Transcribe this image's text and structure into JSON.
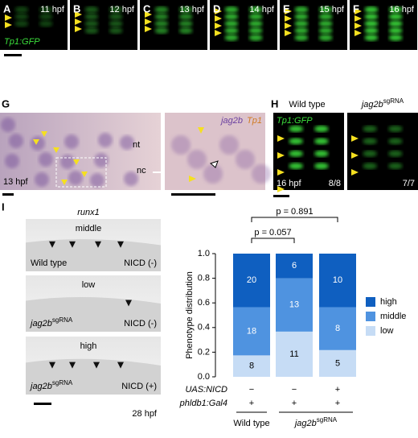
{
  "panels_row1": [
    {
      "letter": "A",
      "stage": "11 hpf"
    },
    {
      "letter": "B",
      "stage": "12 hpf"
    },
    {
      "letter": "C",
      "stage": "13 hpf"
    },
    {
      "letter": "D",
      "stage": "14 hpf"
    },
    {
      "letter": "E",
      "stage": "15 hpf"
    },
    {
      "letter": "F",
      "stage": "16 hpf"
    }
  ],
  "reporter_a": "Tp1:GFP",
  "panel_g": {
    "letter": "G",
    "stage": "13 hpf",
    "nt": "nt",
    "nc": "nc",
    "gene": "jag2b",
    "reporter": "Tp1"
  },
  "panel_h": {
    "letter": "H",
    "reporter": "Tp1:GFP",
    "wt": "Wild type",
    "mut": {
      "text": "jag2b",
      "sup": "sgRNA"
    },
    "stage": "16 hpf",
    "wt_ratio": "8/8",
    "mut_ratio": "7/7"
  },
  "panel_i": {
    "letter": "I",
    "gene": "runx1",
    "stage": "28 hpf",
    "images": [
      {
        "level": "middle",
        "genotype": {
          "text": "Wild type"
        },
        "nicd": "NICD (-)"
      },
      {
        "level": "low",
        "genotype": {
          "text": "jag2b",
          "sup": "sgRNA"
        },
        "nicd": "NICD (-)"
      },
      {
        "level": "high",
        "genotype": {
          "text": "jag2b",
          "sup": "sgRNA"
        },
        "nicd": "NICD (+)"
      }
    ]
  },
  "chart_data": {
    "type": "stacked_bar",
    "ylabel": "Phenotype distribution",
    "ylim": [
      0,
      1
    ],
    "yticks": [
      {
        "value": 0,
        "label": "0.0"
      },
      {
        "value": 0.2,
        "label": "0.2"
      },
      {
        "value": 0.4,
        "label": "0.4"
      },
      {
        "value": 0.6,
        "label": "0.6"
      },
      {
        "value": 0.8,
        "label": "0.8"
      },
      {
        "value": 1,
        "label": "1.0"
      }
    ],
    "series": [
      {
        "name": "low",
        "color": "#c6dcf5",
        "values": [
          0.174,
          0.367,
          0.217
        ],
        "counts": [
          "8",
          "11",
          "5"
        ]
      },
      {
        "name": "middle",
        "color": "#4f93e0",
        "values": [
          0.391,
          0.433,
          0.348
        ],
        "counts": [
          "18",
          "13",
          "8"
        ]
      },
      {
        "name": "high",
        "color": "#0f5fc0",
        "values": [
          0.435,
          0.2,
          0.435
        ],
        "counts": [
          "20",
          "6",
          "10"
        ]
      }
    ],
    "annotations": [
      "p = 0.057",
      "p = 0.891"
    ],
    "conditions": [
      {
        "name": "UAS:NICD",
        "values": [
          "−",
          "−",
          "+"
        ]
      },
      {
        "name": "phldb1:Gal4",
        "values": [
          "+",
          "+",
          "+"
        ]
      }
    ],
    "groups": [
      {
        "text": "Wild type"
      },
      {
        "text": "jag2b",
        "sup": "sgRNA"
      }
    ]
  }
}
